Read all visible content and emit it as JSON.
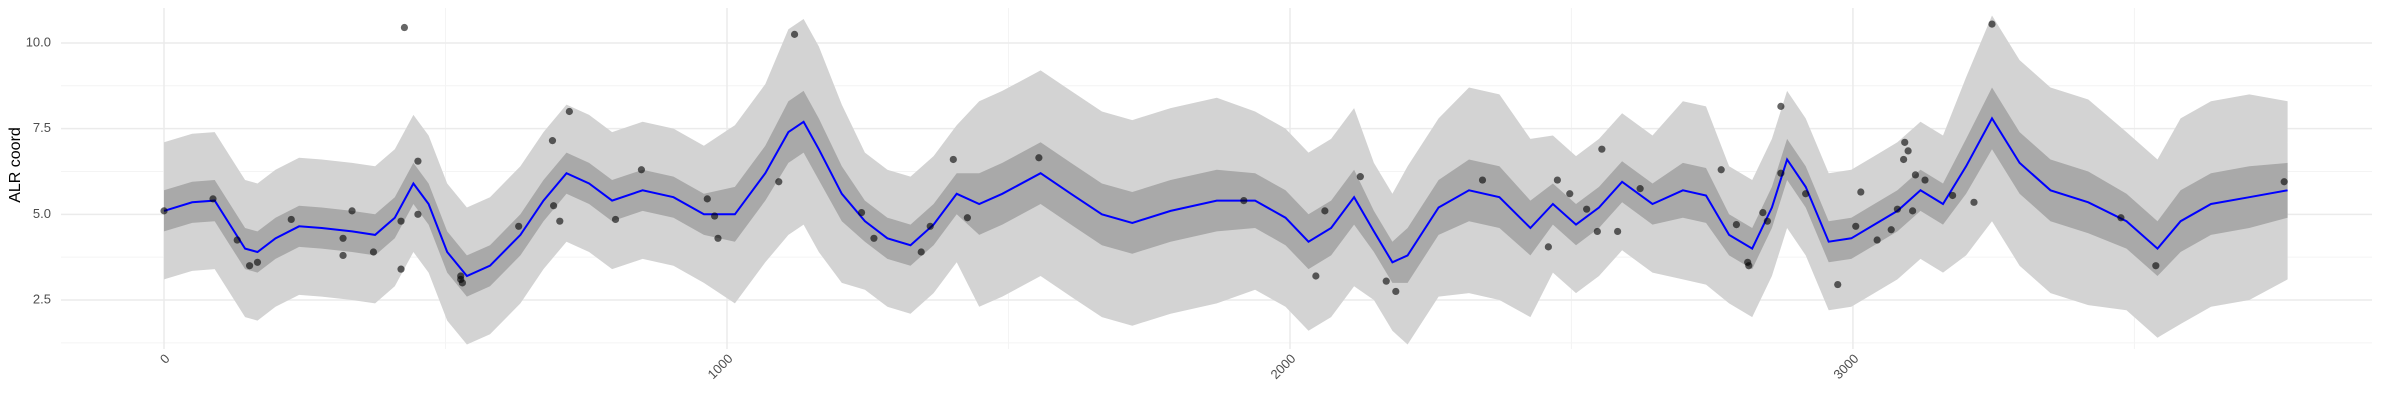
{
  "chart_data": {
    "type": "line",
    "ylabel": "ALR coord",
    "xlim": [
      -183,
      3922
    ],
    "ylim": [
      1.07,
      11.02
    ],
    "xticks": [
      0,
      1000,
      2000,
      3000
    ],
    "yticks": [
      2.5,
      {
        "value": 5,
        "label": "5.0"
      },
      7.5,
      {
        "value": 10,
        "label": "10.0"
      }
    ],
    "xminor": [
      500,
      1500,
      2500,
      3500
    ],
    "yminor": [
      1.25,
      3.75,
      6.25,
      8.75
    ],
    "grid": true,
    "x": [
      0,
      50,
      90,
      117,
      144,
      166,
      198,
      240,
      280,
      334,
      375,
      410,
      443,
      470,
      503,
      538,
      579,
      633,
      674,
      715,
      755,
      796,
      850,
      905,
      959,
      1014,
      1068,
      1109,
      1136,
      1163,
      1204,
      1245,
      1285,
      1326,
      1367,
      1408,
      1448,
      1489,
      1557,
      1611,
      1666,
      1720,
      1788,
      1870,
      1938,
      1992,
      2033,
      2073,
      2114,
      2149,
      2182,
      2209,
      2264,
      2318,
      2372,
      2427,
      2467,
      2508,
      2549,
      2590,
      2644,
      2698,
      2739,
      2780,
      2821,
      2856,
      2883,
      2916,
      2957,
      2997,
      3038,
      3079,
      3120,
      3160,
      3201,
      3247,
      3296,
      3351,
      3418,
      3486,
      3541,
      3582,
      3636,
      3704,
      3772
    ],
    "bands": [
      {
        "color": "#d3d3d3",
        "lower": [
          3.1,
          3.35,
          3.4,
          2.7,
          2.0,
          1.9,
          2.3,
          2.65,
          2.6,
          2.5,
          2.4,
          2.9,
          3.9,
          3.3,
          1.9,
          1.2,
          1.5,
          2.4,
          3.4,
          4.2,
          3.9,
          3.4,
          3.7,
          3.5,
          3.0,
          2.4,
          3.6,
          4.4,
          4.7,
          3.9,
          3.0,
          2.8,
          2.3,
          2.1,
          2.7,
          3.6,
          2.3,
          2.6,
          3.2,
          2.6,
          2.0,
          1.75,
          2.1,
          2.4,
          2.8,
          2.3,
          1.6,
          2.0,
          2.9,
          2.5,
          1.6,
          1.2,
          2.6,
          2.7,
          2.5,
          2.0,
          3.3,
          2.7,
          3.2,
          3.95,
          3.3,
          3.1,
          2.95,
          2.4,
          2.0,
          3.2,
          4.6,
          3.8,
          2.2,
          2.3,
          2.7,
          3.1,
          3.7,
          3.3,
          3.8,
          4.8,
          3.5,
          2.7,
          2.35,
          2.2,
          1.4,
          1.8,
          2.3,
          2.5,
          3.1
        ],
        "upper": [
          7.1,
          7.35,
          7.4,
          6.7,
          6.0,
          5.9,
          6.3,
          6.65,
          6.6,
          6.5,
          6.4,
          6.9,
          7.9,
          7.3,
          5.9,
          5.2,
          5.5,
          6.4,
          7.4,
          8.2,
          7.9,
          7.4,
          7.7,
          7.5,
          7.0,
          7.6,
          8.8,
          10.4,
          10.7,
          9.9,
          8.2,
          6.8,
          6.3,
          6.1,
          6.7,
          7.6,
          8.3,
          8.6,
          9.2,
          8.6,
          8.0,
          7.75,
          8.1,
          8.4,
          8.0,
          7.5,
          6.8,
          7.2,
          8.1,
          6.5,
          5.6,
          6.4,
          7.8,
          8.7,
          8.5,
          7.2,
          7.3,
          6.7,
          7.2,
          7.95,
          7.3,
          8.3,
          8.15,
          6.4,
          6.0,
          7.2,
          8.6,
          7.8,
          6.2,
          6.3,
          6.7,
          7.1,
          7.7,
          7.3,
          9.0,
          10.8,
          9.5,
          8.7,
          8.35,
          7.4,
          6.6,
          7.8,
          8.3,
          8.5,
          8.3
        ]
      },
      {
        "color": "#a9a9a9",
        "lower": [
          4.5,
          4.75,
          4.8,
          4.1,
          3.4,
          3.3,
          3.7,
          4.05,
          4.0,
          3.9,
          3.8,
          4.3,
          5.3,
          4.7,
          3.3,
          2.6,
          2.9,
          3.8,
          4.8,
          5.6,
          5.3,
          4.8,
          5.1,
          4.9,
          4.4,
          4.2,
          5.4,
          6.5,
          6.8,
          6.0,
          4.8,
          4.2,
          3.7,
          3.5,
          4.1,
          5.0,
          4.4,
          4.7,
          5.3,
          4.7,
          4.1,
          3.85,
          4.2,
          4.5,
          4.6,
          4.1,
          3.4,
          3.8,
          4.7,
          3.9,
          3.0,
          3.0,
          4.4,
          4.8,
          4.6,
          3.8,
          4.7,
          4.1,
          4.6,
          5.35,
          4.7,
          4.9,
          4.75,
          3.8,
          3.4,
          4.6,
          6.0,
          5.2,
          3.6,
          3.7,
          4.1,
          4.5,
          5.1,
          4.7,
          5.6,
          6.9,
          5.6,
          4.8,
          4.45,
          4.0,
          3.2,
          3.9,
          4.4,
          4.6,
          4.9
        ],
        "upper": [
          5.7,
          5.95,
          6.0,
          5.3,
          4.6,
          4.5,
          4.9,
          5.25,
          5.2,
          5.1,
          5.0,
          5.5,
          6.5,
          5.9,
          4.5,
          3.8,
          4.1,
          5.0,
          6.0,
          6.8,
          6.5,
          6.0,
          6.3,
          6.1,
          5.6,
          5.8,
          7.0,
          8.3,
          8.6,
          7.8,
          6.4,
          5.4,
          4.9,
          4.7,
          5.3,
          6.2,
          6.2,
          6.5,
          7.1,
          6.5,
          5.9,
          5.65,
          6.0,
          6.3,
          6.2,
          5.7,
          5.0,
          5.4,
          6.3,
          5.1,
          4.2,
          4.6,
          6.0,
          6.6,
          6.4,
          5.4,
          5.9,
          5.3,
          5.8,
          6.55,
          5.9,
          6.5,
          6.35,
          5.0,
          4.6,
          5.8,
          7.2,
          6.4,
          4.8,
          4.9,
          5.3,
          5.7,
          6.3,
          5.9,
          7.2,
          8.7,
          7.4,
          6.6,
          6.25,
          5.6,
          4.8,
          5.7,
          6.2,
          6.4,
          6.5
        ]
      }
    ],
    "mean": {
      "color": "#0000ff",
      "values": [
        5.1,
        5.35,
        5.4,
        4.7,
        4.0,
        3.9,
        4.3,
        4.65,
        4.6,
        4.5,
        4.4,
        4.9,
        5.9,
        5.3,
        3.9,
        3.2,
        3.5,
        4.4,
        5.4,
        6.2,
        5.9,
        5.4,
        5.7,
        5.5,
        5.0,
        5.0,
        6.2,
        7.4,
        7.7,
        6.9,
        5.6,
        4.8,
        4.3,
        4.1,
        4.7,
        5.6,
        5.3,
        5.6,
        6.2,
        5.6,
        5.0,
        4.75,
        5.1,
        5.4,
        5.4,
        4.9,
        4.2,
        4.6,
        5.5,
        4.5,
        3.6,
        3.8,
        5.2,
        5.7,
        5.5,
        4.6,
        5.3,
        4.7,
        5.2,
        5.95,
        5.3,
        5.7,
        5.55,
        4.4,
        4.0,
        5.2,
        6.6,
        5.8,
        4.2,
        4.3,
        4.7,
        5.1,
        5.7,
        5.3,
        6.4,
        7.8,
        6.5,
        5.7,
        5.35,
        4.8,
        4.0,
        4.8,
        5.3,
        5.5,
        5.7
      ]
    },
    "points": {
      "color": "#000000",
      "x": [
        0,
        87,
        130,
        152,
        166,
        226,
        318,
        318,
        334,
        372,
        421,
        427,
        421,
        451,
        451,
        527,
        530,
        527,
        630,
        690,
        720,
        692,
        703,
        802,
        848,
        965,
        978,
        984,
        1092,
        1120,
        1239,
        1261,
        1345,
        1361,
        1402,
        1427,
        1554,
        1918,
        2046,
        2062,
        2125,
        2171,
        2188,
        2342,
        2459,
        2475,
        2497,
        2527,
        2546,
        2554,
        2582,
        2622,
        2766,
        2793,
        2813,
        2815,
        2840,
        2848,
        2872,
        2872,
        2916,
        2973,
        3005,
        3014,
        3043,
        3068,
        3079,
        3092,
        3098,
        3106,
        3111,
        3128,
        3090,
        3177,
        3215,
        3247,
        3476,
        3538,
        3766
      ],
      "values": [
        5.1,
        5.45,
        4.25,
        3.5,
        3.6,
        4.85,
        4.3,
        3.8,
        5.1,
        3.9,
        4.8,
        10.45,
        3.4,
        6.55,
        5.0,
        3.2,
        3.0,
        3.1,
        4.65,
        7.15,
        8.0,
        5.25,
        4.8,
        4.85,
        6.3,
        5.45,
        4.95,
        4.3,
        5.95,
        10.25,
        5.05,
        4.3,
        3.9,
        4.65,
        6.6,
        4.9,
        6.65,
        5.4,
        3.2,
        5.1,
        6.1,
        3.05,
        2.75,
        6.0,
        4.05,
        6.0,
        5.6,
        5.15,
        4.5,
        6.9,
        4.5,
        5.75,
        6.3,
        4.7,
        3.6,
        3.5,
        5.05,
        4.8,
        8.15,
        6.2,
        5.6,
        2.95,
        4.65,
        5.65,
        4.25,
        4.55,
        5.15,
        7.1,
        6.85,
        5.1,
        6.15,
        6.0,
        6.6,
        5.55,
        5.35,
        10.55,
        4.9,
        3.5,
        5.95
      ]
    }
  }
}
